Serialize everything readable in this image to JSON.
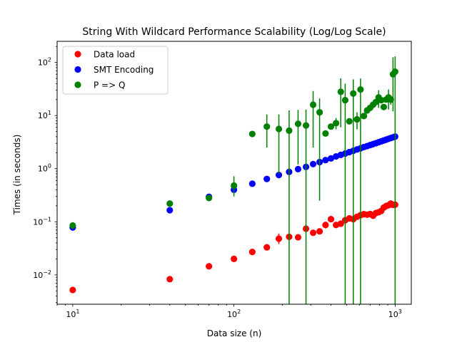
{
  "chart_data": {
    "type": "scatter",
    "title": "String With Wildcard Performance Scalability (Log/Log Scale)",
    "xlabel": "Data size (n)",
    "ylabel": "Times (in seconds)",
    "xscale": "log",
    "yscale": "log",
    "xlim": [
      8,
      1260
    ],
    "ylim": [
      0.0028,
      250
    ],
    "x_tick_labels": [
      {
        "value": 10,
        "base": "10",
        "exp": "1"
      },
      {
        "value": 100,
        "base": "10",
        "exp": "2"
      },
      {
        "value": 1000,
        "base": "10",
        "exp": "3"
      }
    ],
    "y_tick_labels": [
      {
        "value": 0.01,
        "base": "10",
        "exp": "−2"
      },
      {
        "value": 0.1,
        "base": "10",
        "exp": "−1"
      },
      {
        "value": 1,
        "base": "10",
        "exp": "0"
      },
      {
        "value": 10,
        "base": "10",
        "exp": "1"
      },
      {
        "value": 100,
        "base": "10",
        "exp": "2"
      }
    ],
    "grid": false,
    "legend_position": "top-left",
    "series": [
      {
        "name": "Data load",
        "color": "#ff0000",
        "points": [
          {
            "x": 10,
            "y": 0.0052
          },
          {
            "x": 40,
            "y": 0.0083
          },
          {
            "x": 70,
            "y": 0.0145
          },
          {
            "x": 100,
            "y": 0.02
          },
          {
            "x": 130,
            "y": 0.027
          },
          {
            "x": 160,
            "y": 0.033
          },
          {
            "x": 190,
            "y": 0.048,
            "err": [
              0.038,
              0.06
            ]
          },
          {
            "x": 220,
            "y": 0.052
          },
          {
            "x": 250,
            "y": 0.051
          },
          {
            "x": 280,
            "y": 0.074
          },
          {
            "x": 310,
            "y": 0.062
          },
          {
            "x": 340,
            "y": 0.066
          },
          {
            "x": 370,
            "y": 0.087,
            "err": [
              0.075,
              0.1
            ]
          },
          {
            "x": 400,
            "y": 0.112,
            "err": [
              0.098,
              0.13
            ]
          },
          {
            "x": 430,
            "y": 0.087
          },
          {
            "x": 460,
            "y": 0.092
          },
          {
            "x": 490,
            "y": 0.107
          },
          {
            "x": 520,
            "y": 0.116
          },
          {
            "x": 550,
            "y": 0.112
          },
          {
            "x": 580,
            "y": 0.124
          },
          {
            "x": 610,
            "y": 0.133
          },
          {
            "x": 640,
            "y": 0.139
          },
          {
            "x": 670,
            "y": 0.136
          },
          {
            "x": 700,
            "y": 0.14
          },
          {
            "x": 730,
            "y": 0.13
          },
          {
            "x": 760,
            "y": 0.146
          },
          {
            "x": 790,
            "y": 0.151
          },
          {
            "x": 820,
            "y": 0.16
          },
          {
            "x": 850,
            "y": 0.185
          },
          {
            "x": 880,
            "y": 0.198
          },
          {
            "x": 910,
            "y": 0.205
          },
          {
            "x": 940,
            "y": 0.22,
            "err": [
              0.19,
              0.25
            ]
          },
          {
            "x": 970,
            "y": 0.208
          },
          {
            "x": 1000,
            "y": 0.21
          }
        ]
      },
      {
        "name": "SMT Encoding",
        "color": "#0000ff",
        "points": [
          {
            "x": 10,
            "y": 0.078
          },
          {
            "x": 40,
            "y": 0.165
          },
          {
            "x": 70,
            "y": 0.295
          },
          {
            "x": 100,
            "y": 0.4
          },
          {
            "x": 130,
            "y": 0.52
          },
          {
            "x": 160,
            "y": 0.64
          },
          {
            "x": 190,
            "y": 0.76
          },
          {
            "x": 220,
            "y": 0.87
          },
          {
            "x": 250,
            "y": 0.98
          },
          {
            "x": 280,
            "y": 1.08
          },
          {
            "x": 310,
            "y": 1.22
          },
          {
            "x": 340,
            "y": 1.33
          },
          {
            "x": 370,
            "y": 1.45
          },
          {
            "x": 400,
            "y": 1.56
          },
          {
            "x": 430,
            "y": 1.7
          },
          {
            "x": 460,
            "y": 1.82
          },
          {
            "x": 490,
            "y": 1.93
          },
          {
            "x": 520,
            "y": 2.05
          },
          {
            "x": 550,
            "y": 2.17
          },
          {
            "x": 580,
            "y": 2.3
          },
          {
            "x": 610,
            "y": 2.42
          },
          {
            "x": 640,
            "y": 2.55
          },
          {
            "x": 670,
            "y": 2.66
          },
          {
            "x": 700,
            "y": 2.78
          },
          {
            "x": 730,
            "y": 2.9
          },
          {
            "x": 760,
            "y": 3.02
          },
          {
            "x": 790,
            "y": 3.15
          },
          {
            "x": 820,
            "y": 3.27
          },
          {
            "x": 850,
            "y": 3.4
          },
          {
            "x": 880,
            "y": 3.52
          },
          {
            "x": 910,
            "y": 3.65
          },
          {
            "x": 940,
            "y": 3.77
          },
          {
            "x": 970,
            "y": 3.9
          },
          {
            "x": 1000,
            "y": 4.02
          }
        ]
      },
      {
        "name": "P => Q",
        "color": "#008000",
        "points": [
          {
            "x": 10,
            "y": 0.085
          },
          {
            "x": 40,
            "y": 0.22
          },
          {
            "x": 70,
            "y": 0.28
          },
          {
            "x": 100,
            "y": 0.48,
            "err": [
              0.3,
              0.72
            ]
          },
          {
            "x": 130,
            "y": 4.5
          },
          {
            "x": 160,
            "y": 6.2,
            "err": [
              2.5,
              10.5
            ]
          },
          {
            "x": 190,
            "y": 5.6,
            "err": [
              0.8,
              10.5
            ]
          },
          {
            "x": 220,
            "y": 5.2,
            "err": [
              0.001,
              12.5
            ]
          },
          {
            "x": 250,
            "y": 7.0,
            "err": [
              1.2,
              12.8
            ]
          },
          {
            "x": 280,
            "y": 6.5,
            "err": [
              0.001,
              13
            ]
          },
          {
            "x": 310,
            "y": 16,
            "err": [
              2.5,
              29
            ]
          },
          {
            "x": 340,
            "y": 11.5,
            "err": [
              0.25,
              21
            ]
          },
          {
            "x": 370,
            "y": 4.6
          },
          {
            "x": 400,
            "y": 6.2
          },
          {
            "x": 430,
            "y": 7.2,
            "err": [
              5.5,
              9
            ]
          },
          {
            "x": 460,
            "y": 28,
            "err": [
              6,
              50
            ]
          },
          {
            "x": 490,
            "y": 19.5,
            "err": [
              0.001,
              40
            ]
          },
          {
            "x": 520,
            "y": 7.8
          },
          {
            "x": 550,
            "y": 26,
            "err": [
              0.001,
              48
            ]
          },
          {
            "x": 580,
            "y": 8.5,
            "err": [
              5.5,
              11.5
            ]
          },
          {
            "x": 610,
            "y": 31,
            "err": [
              0.001,
              50
            ]
          },
          {
            "x": 640,
            "y": 9.8
          },
          {
            "x": 670,
            "y": 12.5
          },
          {
            "x": 700,
            "y": 14
          },
          {
            "x": 730,
            "y": 16
          },
          {
            "x": 760,
            "y": 18
          },
          {
            "x": 790,
            "y": 22,
            "err": [
              14,
              30
            ]
          },
          {
            "x": 820,
            "y": 19.5
          },
          {
            "x": 850,
            "y": 14.5
          },
          {
            "x": 880,
            "y": 20
          },
          {
            "x": 910,
            "y": 22,
            "err": [
              13,
              31
            ]
          },
          {
            "x": 940,
            "y": 20,
            "err": [
              16,
              24
            ]
          },
          {
            "x": 970,
            "y": 60,
            "err": [
              12,
              125
            ]
          },
          {
            "x": 1000,
            "y": 67,
            "err": [
              0.001,
              130
            ]
          }
        ]
      }
    ]
  }
}
